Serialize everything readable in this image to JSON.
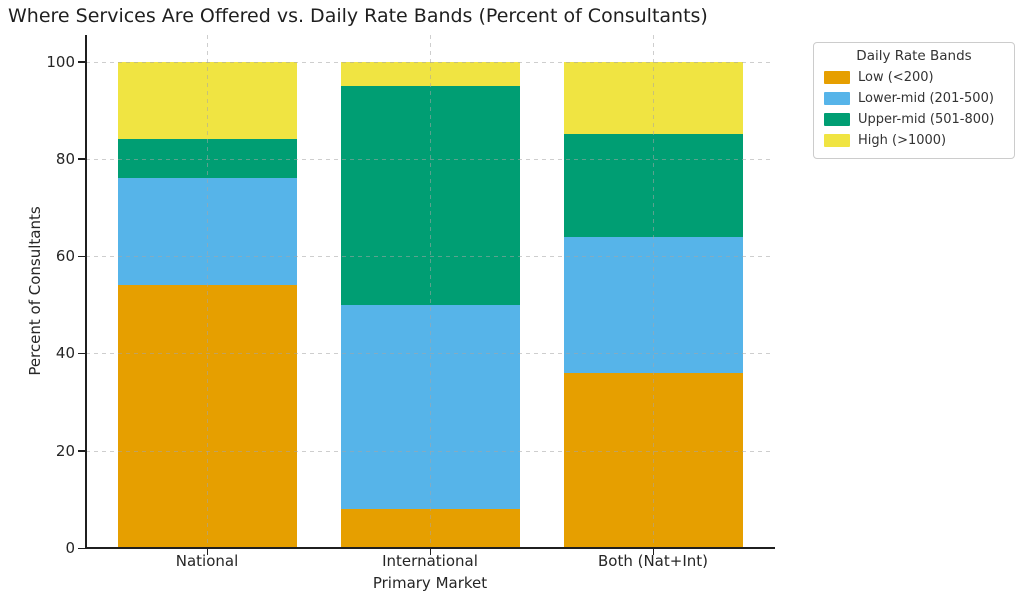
{
  "chart_data": {
    "type": "bar",
    "stacked": true,
    "title": "Where Services Are Offered vs. Daily Rate Bands (Percent of Consultants)",
    "xlabel": "Primary Market",
    "ylabel": "Percent of Consultants",
    "categories": [
      "National",
      "International",
      "Both (Nat+Int)"
    ],
    "series": [
      {
        "name": "Low (<200)",
        "color": "#E69F00",
        "values": [
          54,
          8,
          36
        ]
      },
      {
        "name": "Lower-mid (201-500)",
        "color": "#56B4E9",
        "values": [
          22,
          42,
          28
        ]
      },
      {
        "name": "Upper-mid (501-800)",
        "color": "#009E73",
        "values": [
          8,
          45,
          21
        ]
      },
      {
        "name": "High (>1000)",
        "color": "#F0E442",
        "values": [
          16,
          5,
          15
        ]
      }
    ],
    "ylim": [
      0,
      100
    ],
    "yticks": [
      0,
      20,
      40,
      60,
      80,
      100
    ],
    "grid": true,
    "grid_style": "dashed",
    "legend": {
      "title": "Daily Rate Bands",
      "position": "upper right"
    }
  }
}
